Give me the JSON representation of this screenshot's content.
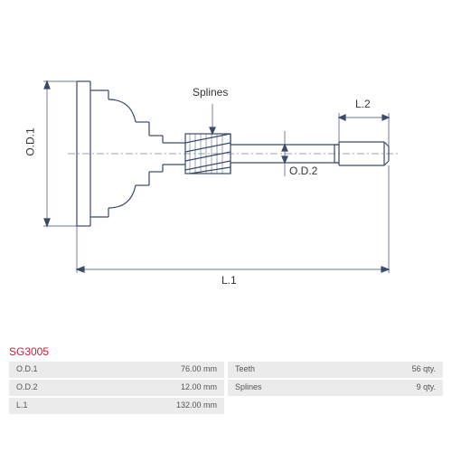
{
  "part_number": "SG3005",
  "part_number_color": "#c41e3a",
  "diagram": {
    "type": "infographic",
    "stroke_color": "#3a4a6b",
    "stroke_width": 1.2,
    "background_color": "#ffffff",
    "labels": {
      "od1": "O.D.1",
      "od2": "O.D.2",
      "l1": "L.1",
      "l2": "L.2",
      "splines": "Splines"
    },
    "label_fontsize": 12,
    "label_color": "#333333"
  },
  "spec_table": {
    "row_bg_color": "#ebebeb",
    "text_color": "#555555",
    "fontsize": 9,
    "left_rows": [
      {
        "label": "O.D.1",
        "value": "76.00 mm"
      },
      {
        "label": "O.D.2",
        "value": "12.00 mm"
      },
      {
        "label": "L.1",
        "value": "132.00 mm"
      }
    ],
    "right_rows": [
      {
        "label": "Teeth",
        "value": "56 qty."
      },
      {
        "label": "Splines",
        "value": "9 qty."
      }
    ]
  }
}
